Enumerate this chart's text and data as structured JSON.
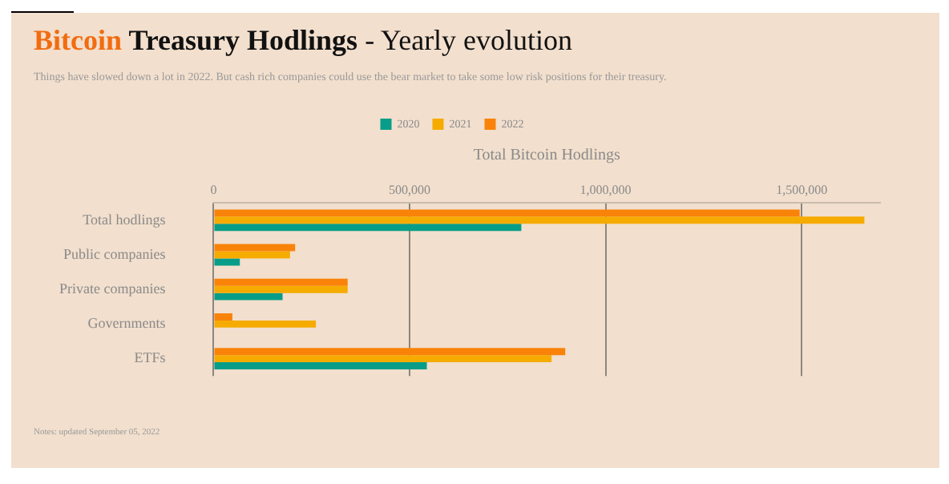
{
  "chart_data": {
    "type": "bar",
    "orientation": "horizontal",
    "title": "Bitcoin Treasury Hodlings - Yearly evolution",
    "subtitle": "Things have slowed down a lot in 2022. But cash rich companies could use the bear market to take some low risk positions for their treasury.",
    "xlabel": "Total Bitcoin Hodlings",
    "categories": [
      "Total hodlings",
      "Public companies",
      "Private companies",
      "Governments",
      "ETFs"
    ],
    "series": [
      {
        "name": "2022",
        "color": "#f98309",
        "values": [
          1495000,
          208000,
          342000,
          48000,
          897000
        ]
      },
      {
        "name": "2021",
        "color": "#f5ab00",
        "values": [
          1660000,
          195000,
          342000,
          261000,
          862000
        ]
      },
      {
        "name": "2020",
        "color": "#079d88",
        "values": [
          785000,
          67000,
          176000,
          null,
          544000
        ]
      }
    ],
    "xticks": [
      0,
      {
        "value": 500000,
        "label": "500,000"
      },
      {
        "value": 1000000,
        "label": "1,000,000"
      },
      {
        "value": 1500000,
        "label": "1,500,000"
      }
    ],
    "xlim": [
      0,
      1700000
    ],
    "grid": "x",
    "legend": "top",
    "annotations": [
      "Notes: updated September 05, 2022"
    ]
  }
}
